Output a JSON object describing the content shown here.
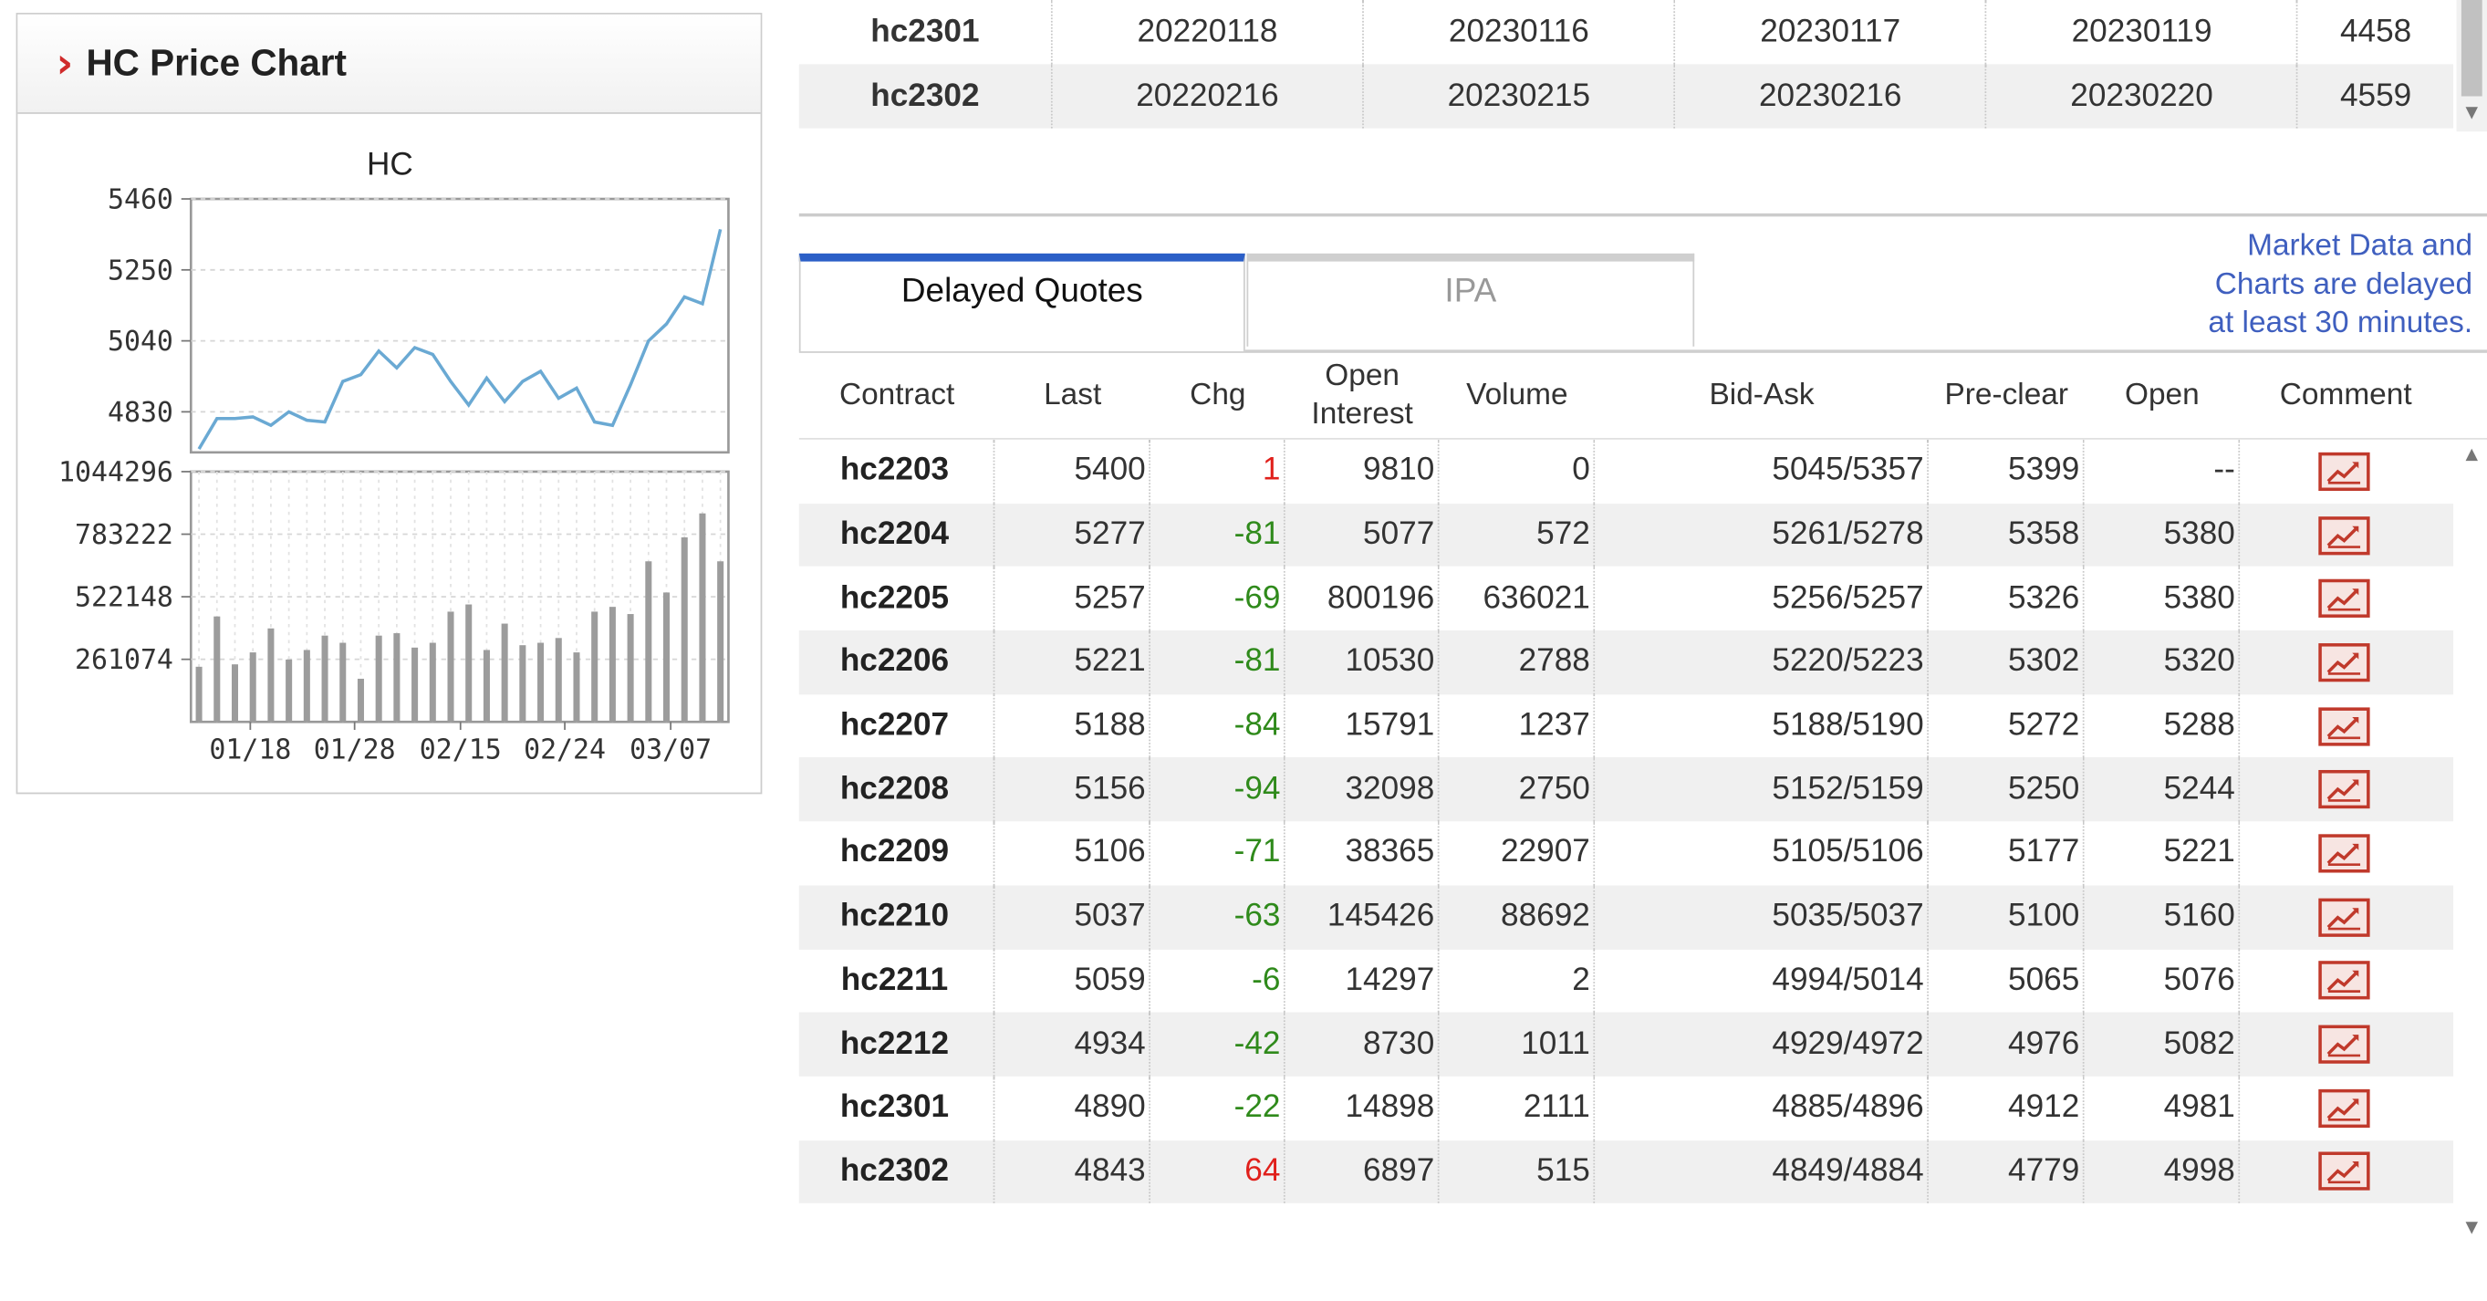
{
  "price_chart": {
    "header": "HC Price Chart",
    "plot_title": "HC",
    "chart_data": {
      "type": "line+bar",
      "title": "HC",
      "price": {
        "y_ticks": [
          "5460",
          "5250",
          "5040",
          "4830"
        ],
        "ylim": [
          4710,
          5460
        ],
        "values": [
          4720,
          4810,
          4810,
          4815,
          4790,
          4830,
          4805,
          4800,
          4920,
          4940,
          5010,
          4960,
          5020,
          5000,
          4920,
          4850,
          4930,
          4860,
          4920,
          4950,
          4870,
          4900,
          4800,
          4790,
          4910,
          5040,
          5090,
          5170,
          5150,
          5370
        ]
      },
      "volume": {
        "y_ticks": [
          "1044296",
          "783222",
          "522148",
          "261074"
        ],
        "ylim": [
          0,
          1044296
        ],
        "values": [
          230000,
          440000,
          240000,
          290000,
          390000,
          260000,
          300000,
          360000,
          330000,
          180000,
          360000,
          370000,
          310000,
          330000,
          460000,
          490000,
          300000,
          410000,
          320000,
          330000,
          350000,
          290000,
          460000,
          480000,
          450000,
          670000,
          540000,
          770000,
          870000,
          670000
        ]
      },
      "x_tick_labels": [
        "01/18",
        "01/28",
        "02/15",
        "02/24",
        "03/07"
      ],
      "colors": {
        "line": "#6aa9d3",
        "bars": "#9c9c9c"
      }
    }
  },
  "top_table": {
    "rows": [
      [
        "hc2301",
        "20220118",
        "20230116",
        "20230117",
        "20230119",
        "4458"
      ],
      [
        "hc2302",
        "20220216",
        "20230215",
        "20230216",
        "20230220",
        "4559"
      ]
    ]
  },
  "tabs": {
    "delayed_quotes": "Delayed Quotes",
    "ipa": "IPA"
  },
  "delay_note": [
    "Market Data and",
    "Charts are delayed",
    "at least 30 minutes."
  ],
  "quotes": {
    "headers": {
      "contract": "Contract",
      "last": "Last",
      "chg": "Chg",
      "open_interest_1": "Open",
      "open_interest_2": "Interest",
      "volume": "Volume",
      "bid_ask": "Bid-Ask",
      "pre_clear": "Pre-clear",
      "open": "Open",
      "comment": "Comment"
    },
    "rows": [
      {
        "contract": "hc2203",
        "last": "5400",
        "chg": "1",
        "oi": "9810",
        "vol": "0",
        "bid_ask": "5045/5357",
        "pre_clear": "5399",
        "open": "--"
      },
      {
        "contract": "hc2204",
        "last": "5277",
        "chg": "-81",
        "oi": "5077",
        "vol": "572",
        "bid_ask": "5261/5278",
        "pre_clear": "5358",
        "open": "5380"
      },
      {
        "contract": "hc2205",
        "last": "5257",
        "chg": "-69",
        "oi": "800196",
        "vol": "636021",
        "bid_ask": "5256/5257",
        "pre_clear": "5326",
        "open": "5380"
      },
      {
        "contract": "hc2206",
        "last": "5221",
        "chg": "-81",
        "oi": "10530",
        "vol": "2788",
        "bid_ask": "5220/5223",
        "pre_clear": "5302",
        "open": "5320"
      },
      {
        "contract": "hc2207",
        "last": "5188",
        "chg": "-84",
        "oi": "15791",
        "vol": "1237",
        "bid_ask": "5188/5190",
        "pre_clear": "5272",
        "open": "5288"
      },
      {
        "contract": "hc2208",
        "last": "5156",
        "chg": "-94",
        "oi": "32098",
        "vol": "2750",
        "bid_ask": "5152/5159",
        "pre_clear": "5250",
        "open": "5244"
      },
      {
        "contract": "hc2209",
        "last": "5106",
        "chg": "-71",
        "oi": "38365",
        "vol": "22907",
        "bid_ask": "5105/5106",
        "pre_clear": "5177",
        "open": "5221"
      },
      {
        "contract": "hc2210",
        "last": "5037",
        "chg": "-63",
        "oi": "145426",
        "vol": "88692",
        "bid_ask": "5035/5037",
        "pre_clear": "5100",
        "open": "5160"
      },
      {
        "contract": "hc2211",
        "last": "5059",
        "chg": "-6",
        "oi": "14297",
        "vol": "2",
        "bid_ask": "4994/5014",
        "pre_clear": "5065",
        "open": "5076"
      },
      {
        "contract": "hc2212",
        "last": "4934",
        "chg": "-42",
        "oi": "8730",
        "vol": "1011",
        "bid_ask": "4929/4972",
        "pre_clear": "4976",
        "open": "5082"
      },
      {
        "contract": "hc2301",
        "last": "4890",
        "chg": "-22",
        "oi": "14898",
        "vol": "2111",
        "bid_ask": "4885/4896",
        "pre_clear": "4912",
        "open": "4981"
      },
      {
        "contract": "hc2302",
        "last": "4843",
        "chg": "64",
        "oi": "6897",
        "vol": "515",
        "bid_ask": "4849/4884",
        "pre_clear": "4779",
        "open": "4998"
      }
    ],
    "comment_icon": "chart-icon",
    "colors": {
      "positive": "#e0201b",
      "negative": "#2f8a1b"
    }
  }
}
